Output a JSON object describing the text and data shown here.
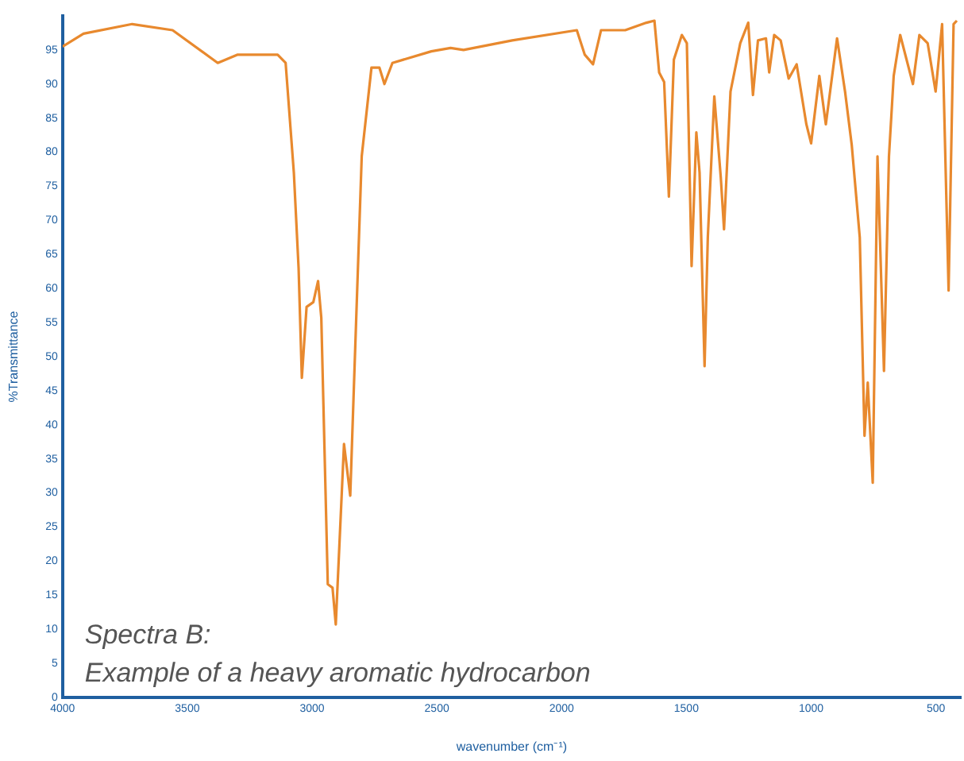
{
  "chart_data": {
    "type": "line",
    "xlabel": "wavenumber (cm⁻¹)",
    "ylabel": "%Transmittance",
    "annotations": [
      "Spectra B:",
      "Example of a heavy aromatic hydrocarbon"
    ],
    "xlim": [
      4000,
      400
    ],
    "xticks": [
      4000,
      3500,
      3000,
      2500,
      2000,
      1500,
      1000,
      500
    ],
    "ylim": [
      0,
      100
    ],
    "yticks": [
      0,
      5,
      10,
      15,
      20,
      25,
      30,
      35,
      40,
      45,
      50,
      55,
      60,
      65,
      70,
      75,
      80,
      85,
      90,
      95
    ],
    "grid": false,
    "legend": false,
    "marker": "none",
    "line_style": "solid",
    "series": [
      {
        "color": "#e8892e",
        "x": [
          4000,
          3916,
          3721,
          3559,
          3378,
          3300,
          3138,
          3106,
          3073,
          3054,
          3041,
          3022,
          2995,
          2976,
          2963,
          2937,
          2918,
          2905,
          2872,
          2847,
          2834,
          2801,
          2762,
          2730,
          2710,
          2678,
          2522,
          2445,
          2393,
          2198,
          1939,
          1907,
          1874,
          1842,
          1745,
          1660,
          1628,
          1609,
          1589,
          1570,
          1550,
          1518,
          1498,
          1479,
          1460,
          1447,
          1427,
          1414,
          1388,
          1362,
          1349,
          1323,
          1284,
          1252,
          1233,
          1213,
          1181,
          1168,
          1148,
          1122,
          1090,
          1058,
          1019,
          1000,
          967,
          941,
          896,
          864,
          837,
          805,
          786,
          773,
          753,
          734,
          708,
          688,
          669,
          643,
          592,
          566,
          533,
          501,
          475,
          449,
          429,
          416
        ],
        "values": [
          95.5,
          97.4,
          98.8,
          97.9,
          93.1,
          94.3,
          94.3,
          93.1,
          77,
          63,
          46.9,
          57.3,
          58,
          61.1,
          55.7,
          16.6,
          16.1,
          10.7,
          37.2,
          29.6,
          43.8,
          79.4,
          92.4,
          92.4,
          90,
          93.1,
          94.8,
          95.3,
          95,
          96.4,
          97.9,
          94.3,
          92.9,
          97.9,
          97.9,
          99,
          99.3,
          91.7,
          90.3,
          73.5,
          93.6,
          97.2,
          96,
          63.3,
          82.9,
          77,
          48.6,
          67.5,
          88.2,
          76.3,
          68.7,
          88.9,
          96,
          99,
          88.4,
          96.4,
          96.7,
          91.7,
          97.2,
          96.4,
          90.8,
          92.9,
          84.1,
          81.3,
          91.2,
          84.1,
          96.7,
          88.9,
          81,
          67.5,
          38.4,
          46.2,
          31.5,
          79.4,
          47.9,
          79.4,
          91.2,
          97.2,
          90,
          97.2,
          96,
          88.9,
          98.8,
          59.7,
          98.8,
          99.3
        ]
      }
    ]
  }
}
